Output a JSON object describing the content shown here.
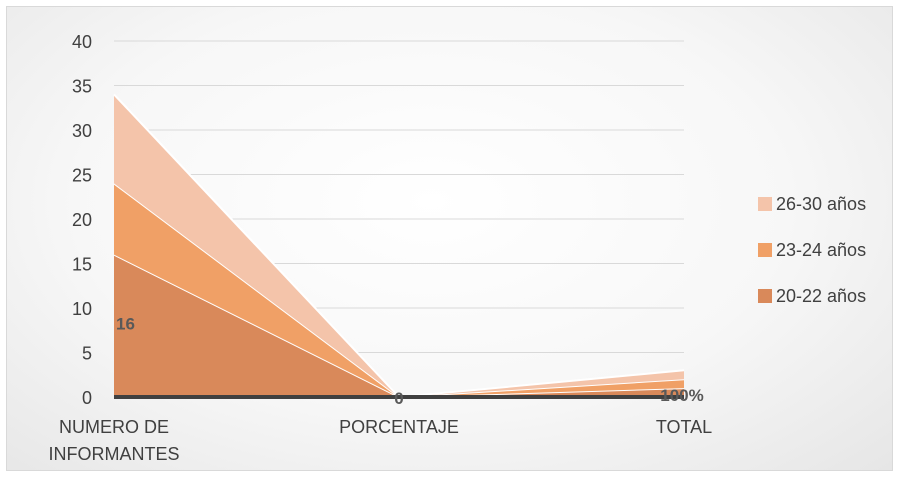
{
  "chart_data": {
    "type": "area",
    "stacked": true,
    "categories": [
      "NUMERO DE INFORMANTES",
      "PORCENTAJE",
      "TOTAL"
    ],
    "category_lines": [
      [
        "NUMERO DE",
        "INFORMANTES"
      ],
      [
        "PORCENTAJE"
      ],
      [
        "TOTAL"
      ]
    ],
    "series": [
      {
        "name": "20-22 años",
        "values": [
          16,
          0,
          1
        ],
        "color": "#d9895a"
      },
      {
        "name": "23-24 años",
        "values": [
          8,
          0,
          1
        ],
        "color": "#f0a066"
      },
      {
        "name": "26-30 años",
        "values": [
          10,
          0,
          1
        ],
        "color": "#f4c4aa"
      }
    ],
    "data_labels": [
      {
        "series": "20-22 años",
        "category": "NUMERO DE INFORMANTES",
        "text": "16"
      },
      {
        "series": "20-22 años",
        "category": "PORCENTAJE",
        "text": "0"
      },
      {
        "series": "20-22 años",
        "category": "TOTAL",
        "text": "100%"
      }
    ],
    "y_ticks": [
      0,
      5,
      10,
      15,
      20,
      25,
      30,
      35,
      40
    ],
    "ylim": [
      0,
      40
    ],
    "grid": true,
    "legend_position": "right",
    "title": "",
    "xlabel": "",
    "ylabel": ""
  }
}
